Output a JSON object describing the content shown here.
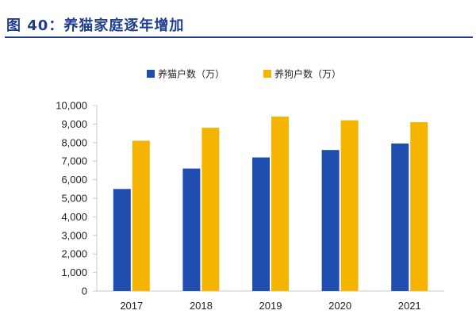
{
  "figure": {
    "title": "图 40：养猫家庭逐年增加"
  },
  "colors": {
    "title": "#1f3d8f",
    "cats": "#1f4db0",
    "dogs": "#f5b400",
    "axis": "#c8c8c8"
  },
  "chart_data": {
    "type": "bar",
    "categories": [
      "2017",
      "2018",
      "2019",
      "2020",
      "2021"
    ],
    "series": [
      {
        "name": "养猫户数（万）",
        "values": [
          5500,
          6600,
          7200,
          7600,
          7950
        ]
      },
      {
        "name": "养狗户数（万）",
        "values": [
          8100,
          8800,
          9400,
          9200,
          9100
        ]
      }
    ],
    "ylim": [
      0,
      10000
    ],
    "yticks": [
      0,
      1000,
      2000,
      3000,
      4000,
      5000,
      6000,
      7000,
      8000,
      9000,
      10000
    ],
    "ytick_labels": [
      "0",
      "1,000",
      "2,000",
      "3,000",
      "4,000",
      "5,000",
      "6,000",
      "7,000",
      "8,000",
      "9,000",
      "10,000"
    ],
    "grid": false,
    "legend_position": "top-center",
    "title": "",
    "xlabel": "",
    "ylabel": ""
  }
}
